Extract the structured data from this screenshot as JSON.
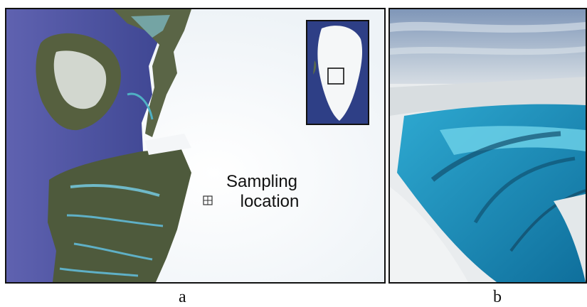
{
  "panel_a": {
    "caption": "a",
    "marker_label_line1": "Sampling",
    "marker_label_line2": "location",
    "marker_icon": "crosshair-square-icon"
  },
  "panel_b": {
    "caption": "b"
  },
  "colors": {
    "ocean": "#4a4f9e",
    "ice_sheet": "#ffffff",
    "land": "#4d5a3e",
    "meltwater": "#39b7cf"
  }
}
